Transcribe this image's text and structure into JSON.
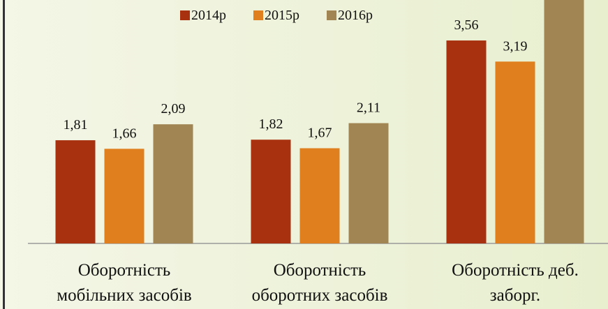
{
  "chart_data": {
    "type": "bar",
    "categories": [
      "Оборотність\nмобільних засобів",
      "Оборотність\nоборотних засобів",
      "Оборотність деб.\nзаборг."
    ],
    "series": [
      {
        "name": "2014р",
        "color": "#a8310f",
        "values": [
          1.81,
          1.82,
          3.56
        ],
        "value_labels": [
          "1,81",
          "1,82",
          "3,56"
        ]
      },
      {
        "name": "2015р",
        "color": "#e07f1d",
        "values": [
          1.66,
          1.67,
          3.19
        ],
        "value_labels": [
          "1,66",
          "1,67",
          "3,19"
        ]
      },
      {
        "name": "2016р",
        "color": "#a18552",
        "values": [
          2.09,
          2.11,
          4.4
        ],
        "value_labels": [
          "2,09",
          "2,11",
          null
        ]
      }
    ],
    "ylim": [
      0,
      4.27
    ],
    "legend": "top"
  }
}
